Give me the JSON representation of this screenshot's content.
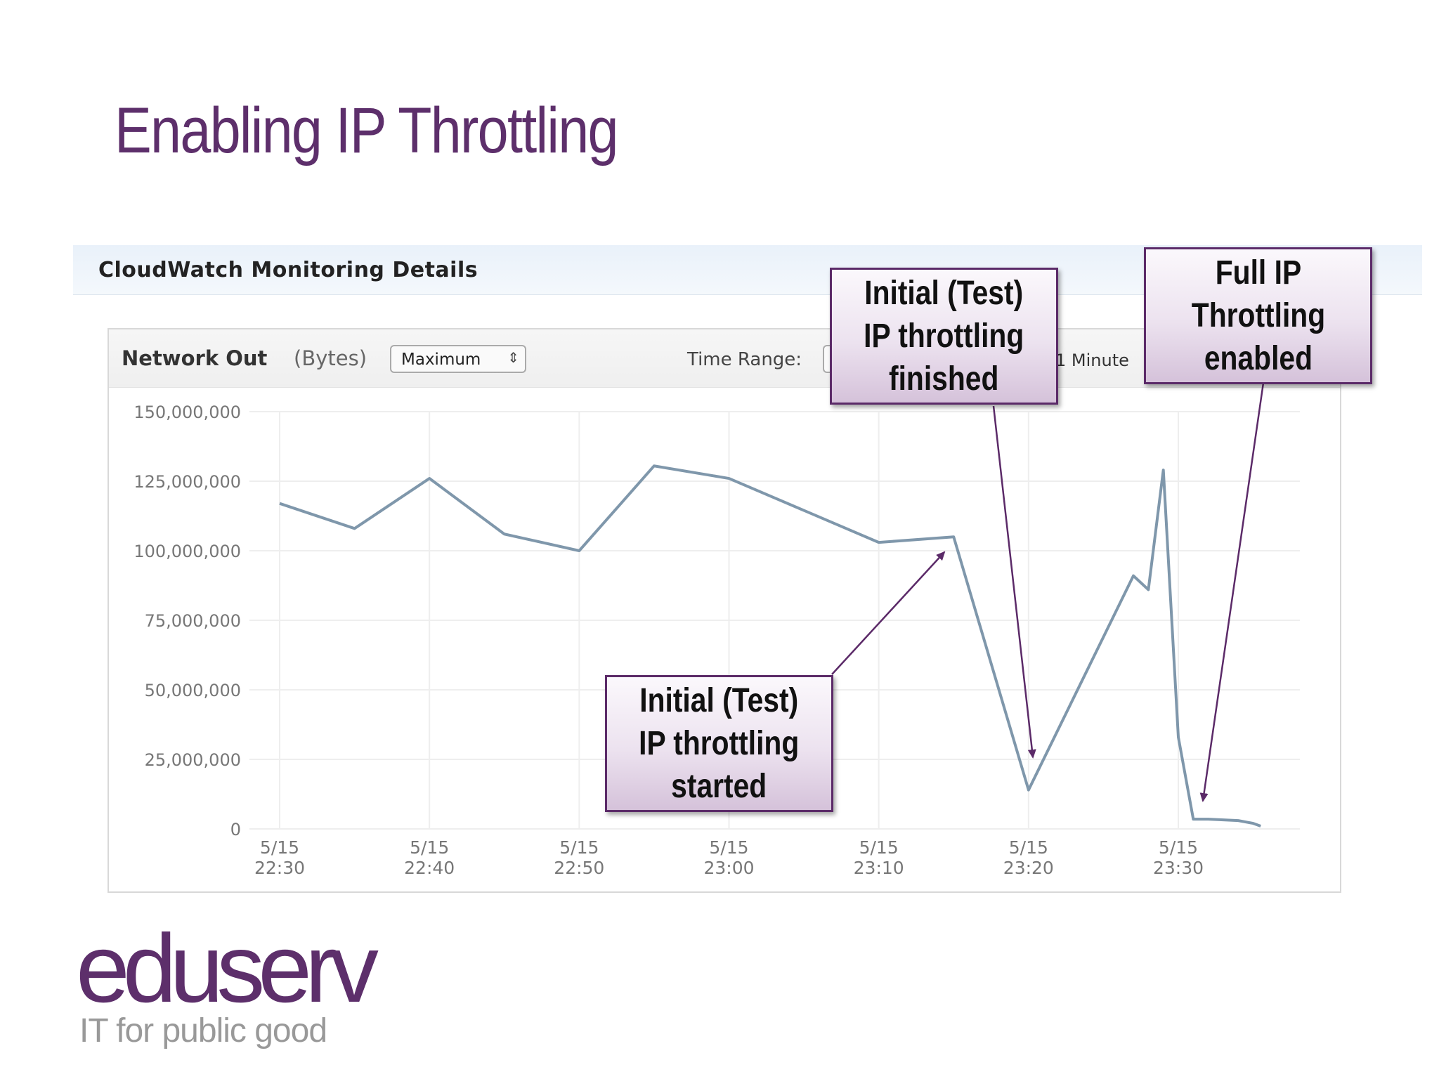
{
  "slide": {
    "title": "Enabling IP Throttling"
  },
  "cloudwatch": {
    "header_title": "CloudWatch Monitoring Details",
    "metric_name": "Network Out",
    "metric_unit": "(Bytes)",
    "statistic": "Maximum",
    "time_range_label": "Time Range:",
    "period": "1 Minute"
  },
  "annotations": {
    "started": "Initial (Test)\nIP throttling\nstarted",
    "finished": "Initial (Test)\nIP throttling\nfinished",
    "full": "Full IP\nThrottling\nenabled"
  },
  "brand": {
    "logo": "eduserv",
    "tagline": "IT for public good",
    "color": "#5d2f6b"
  },
  "colors": {
    "line": "#7f97ab",
    "arrow": "#5b2a68",
    "grid": "#eeeeee"
  },
  "chart_data": {
    "type": "line",
    "title": "",
    "xlabel": "",
    "ylabel": "",
    "ylim": [
      0,
      150000000
    ],
    "yticks": [
      0,
      25000000,
      50000000,
      75000000,
      100000000,
      125000000,
      150000000
    ],
    "ytick_labels": [
      "0",
      "25,000,000",
      "50,000,000",
      "75,000,000",
      "100,000,000",
      "125,000,000",
      "150,000,000"
    ],
    "xlim": [
      "5/15 22:30",
      "5/15 23:37"
    ],
    "xticks": [
      {
        "date": "5/15",
        "time": "22:30"
      },
      {
        "date": "5/15",
        "time": "22:40"
      },
      {
        "date": "5/15",
        "time": "22:50"
      },
      {
        "date": "5/15",
        "time": "23:00"
      },
      {
        "date": "5/15",
        "time": "23:10"
      },
      {
        "date": "5/15",
        "time": "23:20"
      },
      {
        "date": "5/15",
        "time": "23:30"
      }
    ],
    "grid": true,
    "series": [
      {
        "name": "",
        "points": [
          [
            "22:30",
            117000000
          ],
          [
            "22:35",
            108000000
          ],
          [
            "22:40",
            126000000
          ],
          [
            "22:45",
            106000000
          ],
          [
            "22:50",
            100000000
          ],
          [
            "22:55",
            130500000
          ],
          [
            "23:00",
            126000000
          ],
          [
            "23:10",
            103000000
          ],
          [
            "23:15",
            105000000
          ],
          [
            "23:20",
            14000000
          ],
          [
            "23:27",
            91000000
          ],
          [
            "23:28",
            86000000
          ],
          [
            "23:29",
            129000000
          ],
          [
            "23:30",
            33000000
          ],
          [
            "23:31",
            3500000
          ],
          [
            "23:32",
            3500000
          ],
          [
            "23:34",
            3000000
          ],
          [
            "23:35",
            2000000
          ],
          [
            "23:35.5",
            1000000
          ]
        ]
      }
    ]
  }
}
